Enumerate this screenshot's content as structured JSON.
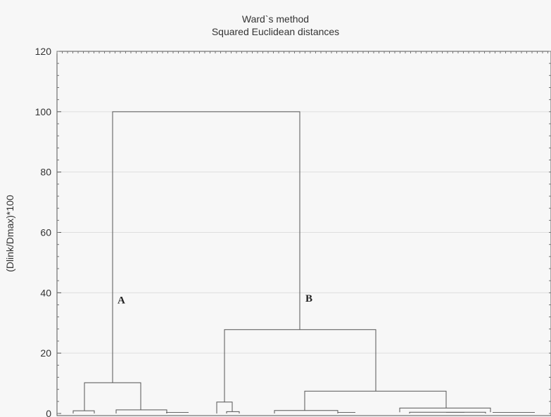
{
  "chart_data": {
    "type": "dendrogram",
    "title": "Ward`s method",
    "subtitle": "Squared Euclidean distances",
    "ylabel": "(Dlink/Dmax)*100",
    "ylim": [
      0,
      120
    ],
    "yticks": [
      0,
      20,
      40,
      60,
      80,
      100,
      120
    ],
    "grid": true,
    "cluster_labels": [
      "A",
      "B"
    ],
    "merges": [
      {
        "height": 100
      },
      {
        "height": 27.8
      },
      {
        "height": 10.2
      },
      {
        "height": 7.4
      },
      {
        "height": 3.8
      },
      {
        "height": 1.8
      }
    ]
  }
}
